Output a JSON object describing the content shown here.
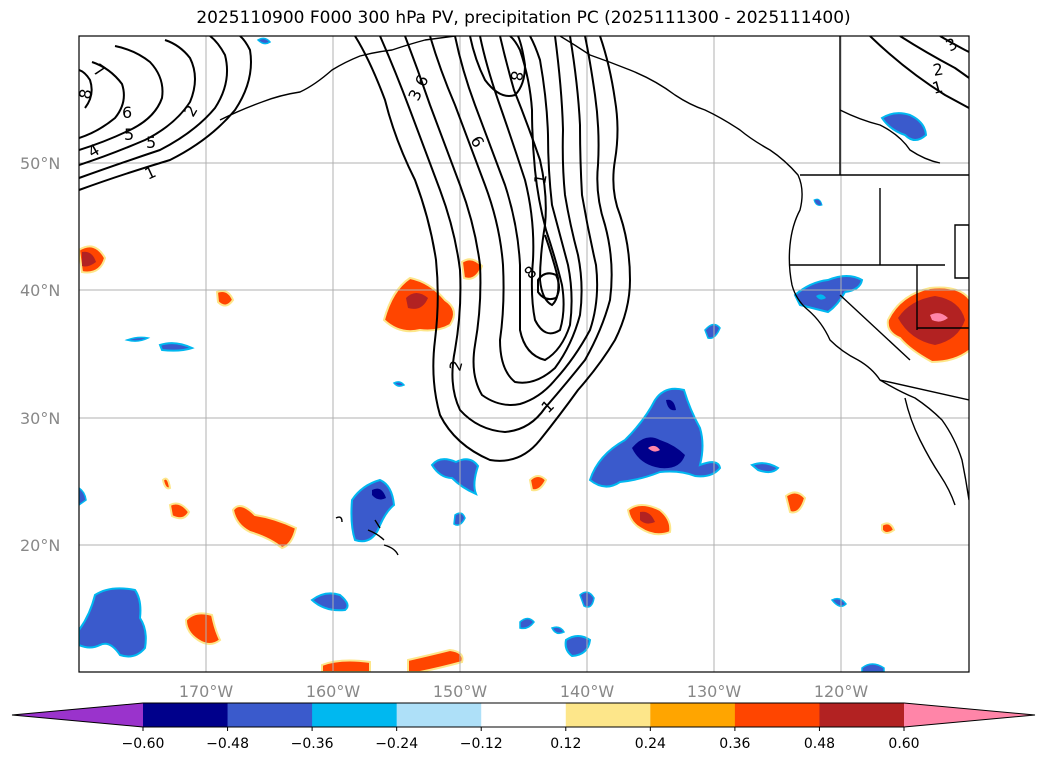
{
  "title": "2025110900 F000 300 hPa PV, precipitation PC (2025111300 - 2025111400)",
  "latitude_labels": [
    "50°N",
    "40°N",
    "30°N",
    "20°N"
  ],
  "longitude_labels": [
    "170°W",
    "160°W",
    "150°W",
    "140°W",
    "130°W",
    "120°W"
  ],
  "colorbar": {
    "ticks": [
      "−0.60",
      "−0.48",
      "−0.36",
      "−0.24",
      "−0.12",
      "0.12",
      "0.24",
      "0.36",
      "0.48",
      "0.60"
    ],
    "colors": [
      "#9a33cc",
      "#00008b",
      "#3a5acc",
      "#00b8f0",
      "#aee0f8",
      "#ffffff",
      "#fde68a",
      "#ffa500",
      "#ff4500",
      "#b22222",
      "#ff85a8"
    ]
  },
  "contour_labels": [
    "7",
    "8",
    "6",
    "5",
    "4",
    "2",
    "1",
    "5",
    "3",
    "6",
    "6",
    "8",
    "1",
    "8",
    "2",
    "1",
    "3",
    "2",
    "1"
  ],
  "colors": {
    "positive_fill": "#ff4500",
    "positive_core": "#b22222",
    "negative_fill": "#3a5acc",
    "negative_core": "#00008b",
    "negative_edge": "#00b8f0",
    "positive_edge": "#fde68a",
    "grid": "#b0b0b0"
  }
}
